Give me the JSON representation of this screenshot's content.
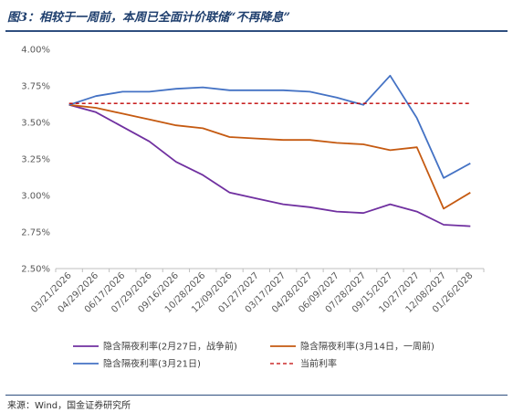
{
  "header": {
    "title": "图3：相较于一周前，本周已全面计价联储“不再降息”"
  },
  "footer": {
    "source": "来源：Wind，国金证券研究所"
  },
  "chart_data": {
    "type": "line",
    "title": "",
    "xlabel": "",
    "ylabel": "",
    "ylim": [
      2.5,
      4.0
    ],
    "yticks": [
      "2.50%",
      "2.75%",
      "3.00%",
      "3.25%",
      "3.50%",
      "3.75%",
      "4.00%"
    ],
    "ytick_values": [
      2.5,
      2.75,
      3.0,
      3.25,
      3.5,
      3.75,
      4.0
    ],
    "grid": false,
    "legend_position": "bottom",
    "categories": [
      "03/21/2026",
      "04/29/2026",
      "06/17/2026",
      "07/29/2026",
      "09/16/2026",
      "10/28/2026",
      "12/09/2026",
      "01/27/2027",
      "03/17/2027",
      "04/28/2027",
      "06/09/2027",
      "07/28/2027",
      "09/15/2027",
      "10/27/2027",
      "12/08/2027",
      "01/26/2028"
    ],
    "series": [
      {
        "name": "隐含隔夜利率(2月27日，战争前)",
        "color": "#7030a0",
        "dashed": false,
        "values": [
          3.62,
          3.57,
          3.47,
          3.37,
          3.23,
          3.14,
          3.02,
          2.98,
          2.94,
          2.92,
          2.89,
          2.88,
          2.94,
          2.89,
          2.8,
          2.79
        ]
      },
      {
        "name": "隐含隔夜利率(3月14日，一周前)",
        "color": "#c55a11",
        "dashed": false,
        "values": [
          3.62,
          3.6,
          3.56,
          3.52,
          3.48,
          3.46,
          3.4,
          3.39,
          3.38,
          3.38,
          3.36,
          3.35,
          3.31,
          3.33,
          2.91,
          3.02
        ]
      },
      {
        "name": "隐含隔夜利率(3月21日)",
        "color": "#4472c4",
        "dashed": false,
        "values": [
          3.62,
          3.68,
          3.71,
          3.71,
          3.73,
          3.74,
          3.72,
          3.72,
          3.72,
          3.71,
          3.67,
          3.62,
          3.82,
          3.53,
          3.12,
          3.22
        ]
      },
      {
        "name": "当前利率",
        "color": "#c00000",
        "dashed": true,
        "values": [
          3.63,
          3.63,
          3.63,
          3.63,
          3.63,
          3.63,
          3.63,
          3.63,
          3.63,
          3.63,
          3.63,
          3.63,
          3.63,
          3.63,
          3.63,
          3.63
        ]
      }
    ]
  }
}
